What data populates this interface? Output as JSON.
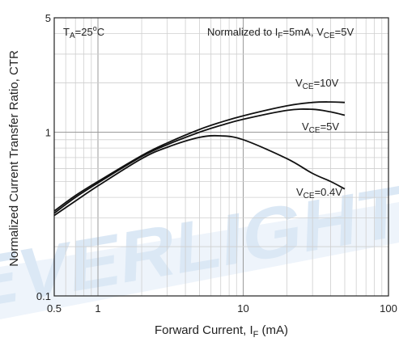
{
  "chart_data": {
    "type": "line",
    "title": "",
    "xlabel": "Forward Current, I",
    "xlabel_sub": "F",
    "xlabel_unit": " (mA)",
    "ylabel": "Normalized Current Transfer Ratio, CTR",
    "x_scale": "log",
    "y_scale": "log",
    "xlim": [
      0.5,
      100
    ],
    "ylim": [
      0.1,
      5
    ],
    "x_ticks": [
      0.5,
      1,
      10,
      100
    ],
    "x_tick_labels": [
      "0.5",
      "1",
      "10",
      "100"
    ],
    "y_ticks": [
      0.1,
      1,
      5
    ],
    "y_tick_labels": [
      "0.1",
      "1",
      "5"
    ],
    "grid": true,
    "annotations": {
      "temperature": {
        "t": "T",
        "sub": "A",
        "rest": "=25",
        "sup": "o",
        "unit": "C"
      },
      "normalization": {
        "prefix": "Normalized to I",
        "sub1": "F",
        "mid": "=5mA, V",
        "sub2": "CE",
        "suffix": "=5V"
      }
    },
    "series": [
      {
        "name": "V_CE=10V",
        "label": {
          "v": "V",
          "sub": "CE",
          "rest": "=10V"
        },
        "x": [
          0.5,
          0.7,
          1,
          2,
          3,
          5,
          7,
          10,
          20,
          30,
          40,
          50
        ],
        "y": [
          0.33,
          0.41,
          0.5,
          0.72,
          0.86,
          1.04,
          1.15,
          1.26,
          1.45,
          1.52,
          1.53,
          1.52
        ]
      },
      {
        "name": "V_CE=5V",
        "label": {
          "v": "V",
          "sub": "CE",
          "rest": "=5V"
        },
        "x": [
          0.5,
          0.7,
          1,
          2,
          3,
          5,
          7,
          10,
          20,
          30,
          40,
          50
        ],
        "y": [
          0.32,
          0.4,
          0.49,
          0.71,
          0.84,
          1.0,
          1.1,
          1.2,
          1.36,
          1.38,
          1.33,
          1.27
        ]
      },
      {
        "name": "V_CE=0.4V",
        "label": {
          "v": "V",
          "sub": "CE",
          "rest": "=0.4V"
        },
        "x": [
          0.5,
          0.7,
          1,
          2,
          3,
          5,
          7,
          10,
          20,
          30,
          40,
          50
        ],
        "y": [
          0.31,
          0.38,
          0.47,
          0.69,
          0.81,
          0.93,
          0.95,
          0.9,
          0.69,
          0.56,
          0.5,
          0.45
        ]
      }
    ]
  },
  "watermark": "EVERLIGHT"
}
